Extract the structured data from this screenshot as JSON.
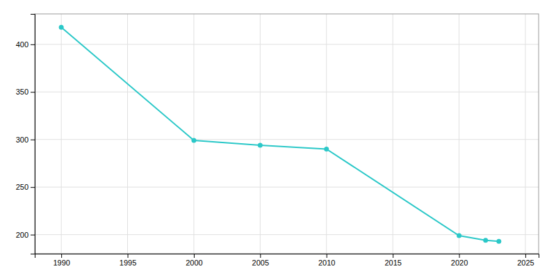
{
  "chart_data": {
    "type": "line",
    "x": [
      1990,
      2000,
      2005,
      2010,
      2020,
      2022,
      2023
    ],
    "values": [
      418,
      299,
      294,
      290,
      199,
      194,
      193
    ],
    "color": "#2bc8c8",
    "marker": "circle",
    "xlim": [
      1988,
      2026
    ],
    "ylim": [
      180,
      432
    ],
    "xticks": [
      1990,
      1995,
      2000,
      2005,
      2010,
      2015,
      2020,
      2025
    ],
    "yticks": [
      200,
      250,
      300,
      350,
      400
    ],
    "grid": true
  }
}
